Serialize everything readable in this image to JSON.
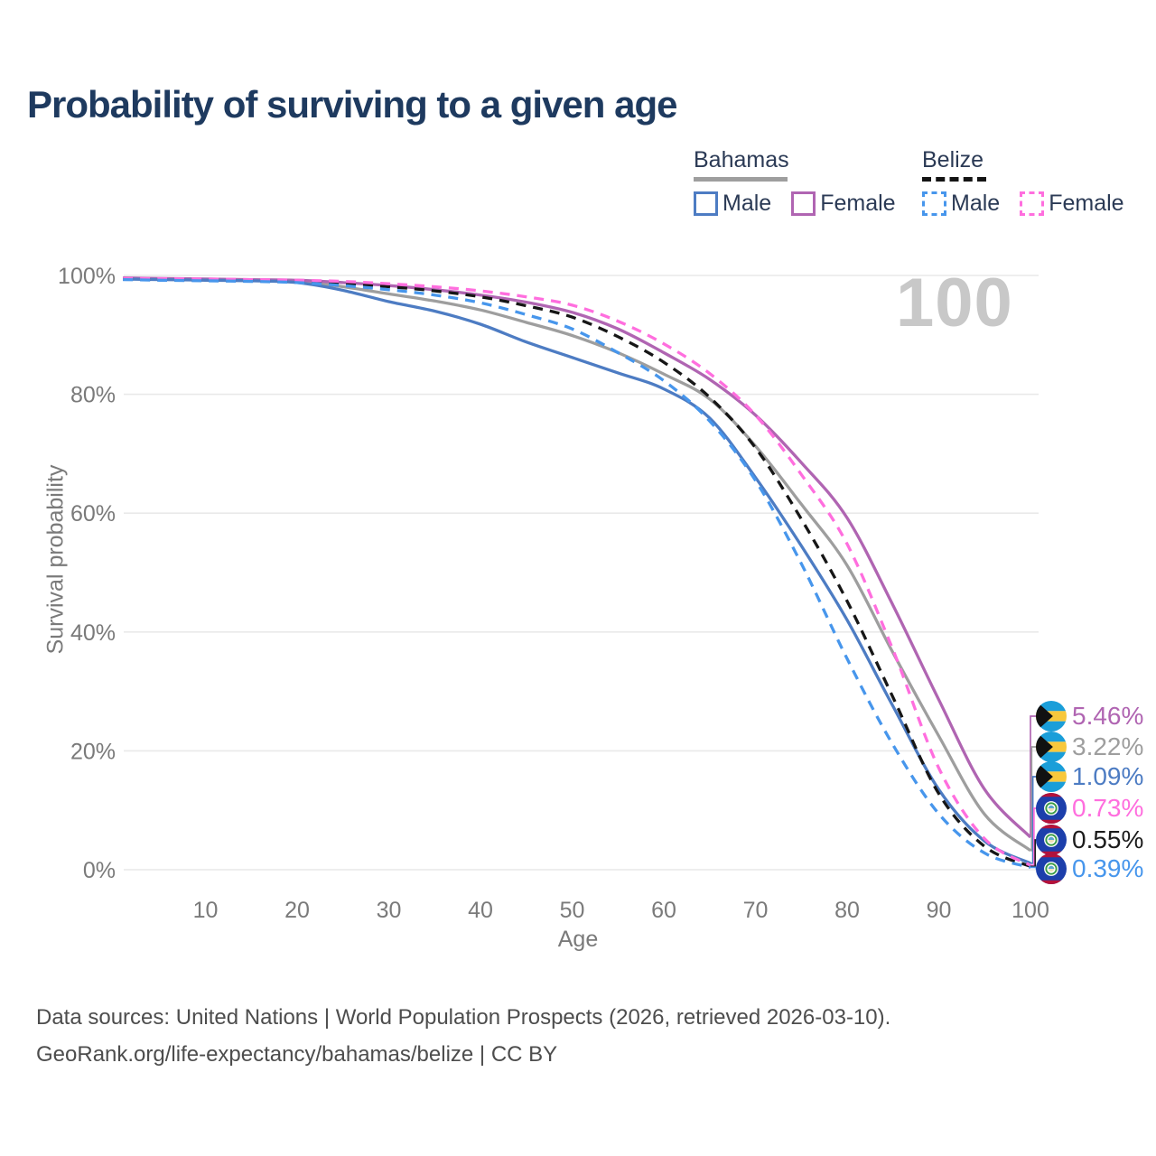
{
  "title": "Probability of surviving to a given age",
  "watermark": "100",
  "legend": {
    "groups": [
      {
        "label": "Bahamas",
        "line_style": "solid",
        "line_color": "#9e9e9e",
        "items": [
          {
            "label": "Male",
            "color": "#4d7cc3",
            "dashed": false
          },
          {
            "label": "Female",
            "color": "#b065b2",
            "dashed": false
          }
        ]
      },
      {
        "label": "Belize",
        "line_style": "dashed",
        "line_color": "#141414",
        "items": [
          {
            "label": "Male",
            "color": "#4796ec",
            "dashed": true
          },
          {
            "label": "Female",
            "color": "#ff6ede",
            "dashed": true
          }
        ]
      }
    ]
  },
  "chart_data": {
    "type": "line",
    "title": "Probability of surviving to a given age",
    "xlabel": "Age",
    "ylabel": "Survival probability",
    "xlim": [
      0,
      100
    ],
    "ylim": [
      0,
      100
    ],
    "grid": "horizontal",
    "x_ticks": [
      10,
      20,
      30,
      40,
      50,
      60,
      70,
      80,
      90,
      100
    ],
    "y_ticks": [
      {
        "value": 0,
        "label": "0%"
      },
      {
        "value": 20,
        "label": "20%"
      },
      {
        "value": 40,
        "label": "40%"
      },
      {
        "value": 60,
        "label": "60%"
      },
      {
        "value": 80,
        "label": "80%"
      },
      {
        "value": 100,
        "label": "100%"
      }
    ],
    "x": [
      1,
      5,
      10,
      15,
      20,
      25,
      30,
      35,
      40,
      45,
      50,
      55,
      60,
      65,
      70,
      75,
      80,
      85,
      90,
      95,
      100
    ],
    "series": [
      {
        "name": "Bahamas",
        "country": "Bahamas",
        "sex": "both",
        "color": "#9e9e9e",
        "dashed": false,
        "end_value_label": "3.22%",
        "values": [
          99.5,
          99.4,
          99.3,
          99.2,
          99.0,
          98.1,
          96.9,
          95.7,
          94.2,
          92.1,
          89.9,
          87.0,
          83.4,
          79.2,
          71.3,
          61.5,
          51.2,
          36.5,
          22.5,
          9.3,
          3.22
        ]
      },
      {
        "name": "Bahamas Female",
        "country": "Bahamas",
        "sex": "female",
        "color": "#b065b2",
        "dashed": false,
        "end_value_label": "5.46%",
        "values": [
          99.6,
          99.5,
          99.4,
          99.3,
          99.2,
          98.8,
          98.3,
          97.6,
          96.7,
          95.5,
          93.8,
          91.0,
          87.0,
          82.5,
          76.5,
          68.5,
          59.2,
          44.5,
          28.6,
          13.5,
          5.46
        ]
      },
      {
        "name": "Bahamas Male",
        "country": "Bahamas",
        "sex": "male",
        "color": "#4d7cc3",
        "dashed": false,
        "end_value_label": "1.09%",
        "values": [
          99.4,
          99.3,
          99.2,
          99.1,
          98.8,
          97.5,
          95.6,
          94.0,
          91.8,
          88.8,
          86.2,
          83.6,
          80.9,
          76.0,
          66.0,
          54.5,
          42.0,
          27.5,
          13.5,
          4.8,
          1.09
        ]
      },
      {
        "name": "Belize",
        "country": "Belize",
        "sex": "both",
        "color": "#161616",
        "dashed": true,
        "end_value_label": "0.55%",
        "values": [
          99.4,
          99.3,
          99.25,
          99.15,
          99.0,
          98.6,
          98.1,
          97.4,
          96.4,
          94.9,
          93.0,
          89.7,
          85.4,
          79.5,
          71.0,
          59.0,
          45.2,
          29.0,
          12.8,
          3.9,
          0.55
        ]
      },
      {
        "name": "Belize Female",
        "country": "Belize",
        "sex": "female",
        "color": "#ff6ede",
        "dashed": true,
        "end_value_label": "0.73%",
        "values": [
          99.5,
          99.45,
          99.4,
          99.3,
          99.2,
          99.0,
          98.6,
          98.1,
          97.4,
          96.4,
          95.0,
          92.3,
          88.5,
          83.5,
          76.5,
          66.5,
          54.8,
          37.0,
          17.1,
          5.2,
          0.73
        ]
      },
      {
        "name": "Belize Male",
        "country": "Belize",
        "sex": "male",
        "color": "#4796ec",
        "dashed": true,
        "end_value_label": "0.39%",
        "values": [
          99.3,
          99.2,
          99.1,
          99.0,
          98.8,
          98.3,
          97.6,
          96.7,
          95.4,
          93.4,
          91.0,
          87.0,
          82.3,
          75.5,
          65.5,
          51.5,
          35.5,
          21.0,
          9.4,
          2.8,
          0.39
        ]
      }
    ],
    "end_labels": [
      {
        "value": "5.46%",
        "flag": "bahamas",
        "series": "Bahamas Female",
        "color": "#b065b2"
      },
      {
        "value": "3.22%",
        "flag": "bahamas",
        "series": "Bahamas",
        "color": "#9e9e9e"
      },
      {
        "value": "1.09%",
        "flag": "bahamas",
        "series": "Bahamas Male",
        "color": "#4d7cc3"
      },
      {
        "value": "0.73%",
        "flag": "belize",
        "series": "Belize Female",
        "color": "#ff6ede"
      },
      {
        "value": "0.55%",
        "flag": "belize",
        "series": "Belize",
        "color": "#1c1c1c"
      },
      {
        "value": "0.39%",
        "flag": "belize",
        "series": "Belize Male",
        "color": "#4796ec"
      }
    ]
  },
  "footer": {
    "line1": "Data sources: United Nations | World Population Prospects (2026, retrieved 2026-03-10).",
    "line2": "GeoRank.org/life-expectancy/bahamas/belize | CC BY"
  }
}
